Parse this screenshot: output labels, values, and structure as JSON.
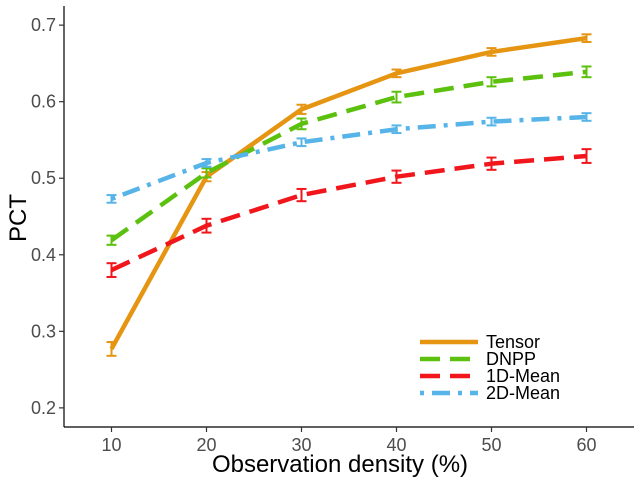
{
  "chart_data": {
    "type": "line",
    "xlabel": "Observation density (%)",
    "ylabel": "PCT",
    "x": [
      10,
      20,
      30,
      40,
      50,
      60
    ],
    "x_ticks": [
      "10",
      "20",
      "30",
      "40",
      "50",
      "60"
    ],
    "y_ticks": [
      "0.2",
      "0.3",
      "0.4",
      "0.5",
      "0.6",
      "0.7"
    ],
    "xlim": [
      5,
      65
    ],
    "ylim": [
      0.175,
      0.725
    ],
    "grid": false,
    "legend_position": "bottom-right",
    "series": [
      {
        "name": "Tensor",
        "color": "#E69512",
        "dash": "solid",
        "values": [
          0.277,
          0.502,
          0.59,
          0.637,
          0.665,
          0.683
        ],
        "errors": [
          0.009,
          0.006,
          0.006,
          0.005,
          0.005,
          0.005
        ]
      },
      {
        "name": "DNPP",
        "color": "#5CC10E",
        "dash": "dashed",
        "values": [
          0.419,
          0.507,
          0.571,
          0.606,
          0.626,
          0.639
        ],
        "errors": [
          0.006,
          0.006,
          0.007,
          0.007,
          0.006,
          0.007
        ]
      },
      {
        "name": "1D-Mean",
        "color": "#F0161B",
        "dash": "dashed",
        "values": [
          0.38,
          0.438,
          0.478,
          0.502,
          0.519,
          0.529
        ],
        "errors": [
          0.009,
          0.009,
          0.008,
          0.008,
          0.008,
          0.009
        ]
      },
      {
        "name": "2D-Mean",
        "color": "#56B4E9",
        "dash": "dotdash",
        "values": [
          0.473,
          0.52,
          0.547,
          0.564,
          0.574,
          0.58
        ],
        "errors": [
          0.005,
          0.005,
          0.005,
          0.005,
          0.005,
          0.005
        ]
      }
    ]
  }
}
